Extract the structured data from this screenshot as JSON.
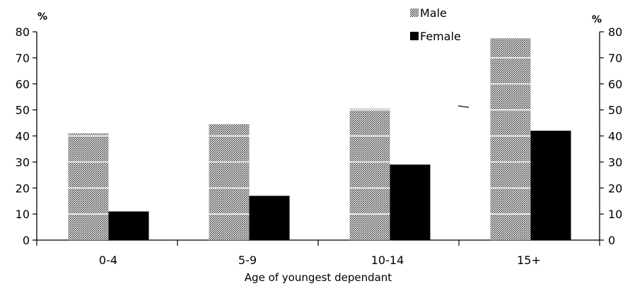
{
  "chart_data": {
    "type": "bar",
    "title": "",
    "xlabel": "Age of youngest dependant",
    "ylabel_left": "%",
    "ylabel_right": "%",
    "ylim": [
      0,
      80
    ],
    "yticks": [
      0,
      10,
      20,
      30,
      40,
      50,
      60,
      70,
      80
    ],
    "categories": [
      "0-4",
      "5-9",
      "10-14",
      "15+"
    ],
    "series": [
      {
        "name": "Male",
        "values": [
          41,
          44.5,
          50.5,
          77.5
        ],
        "color": "#8c8c8c",
        "pattern": "dotted-light-dark"
      },
      {
        "name": "Female",
        "values": [
          11,
          17,
          29,
          42
        ],
        "color": "#000000",
        "pattern": "solid"
      }
    ],
    "legend_position": "top-right",
    "grid": false,
    "dual_y_axis": true
  }
}
